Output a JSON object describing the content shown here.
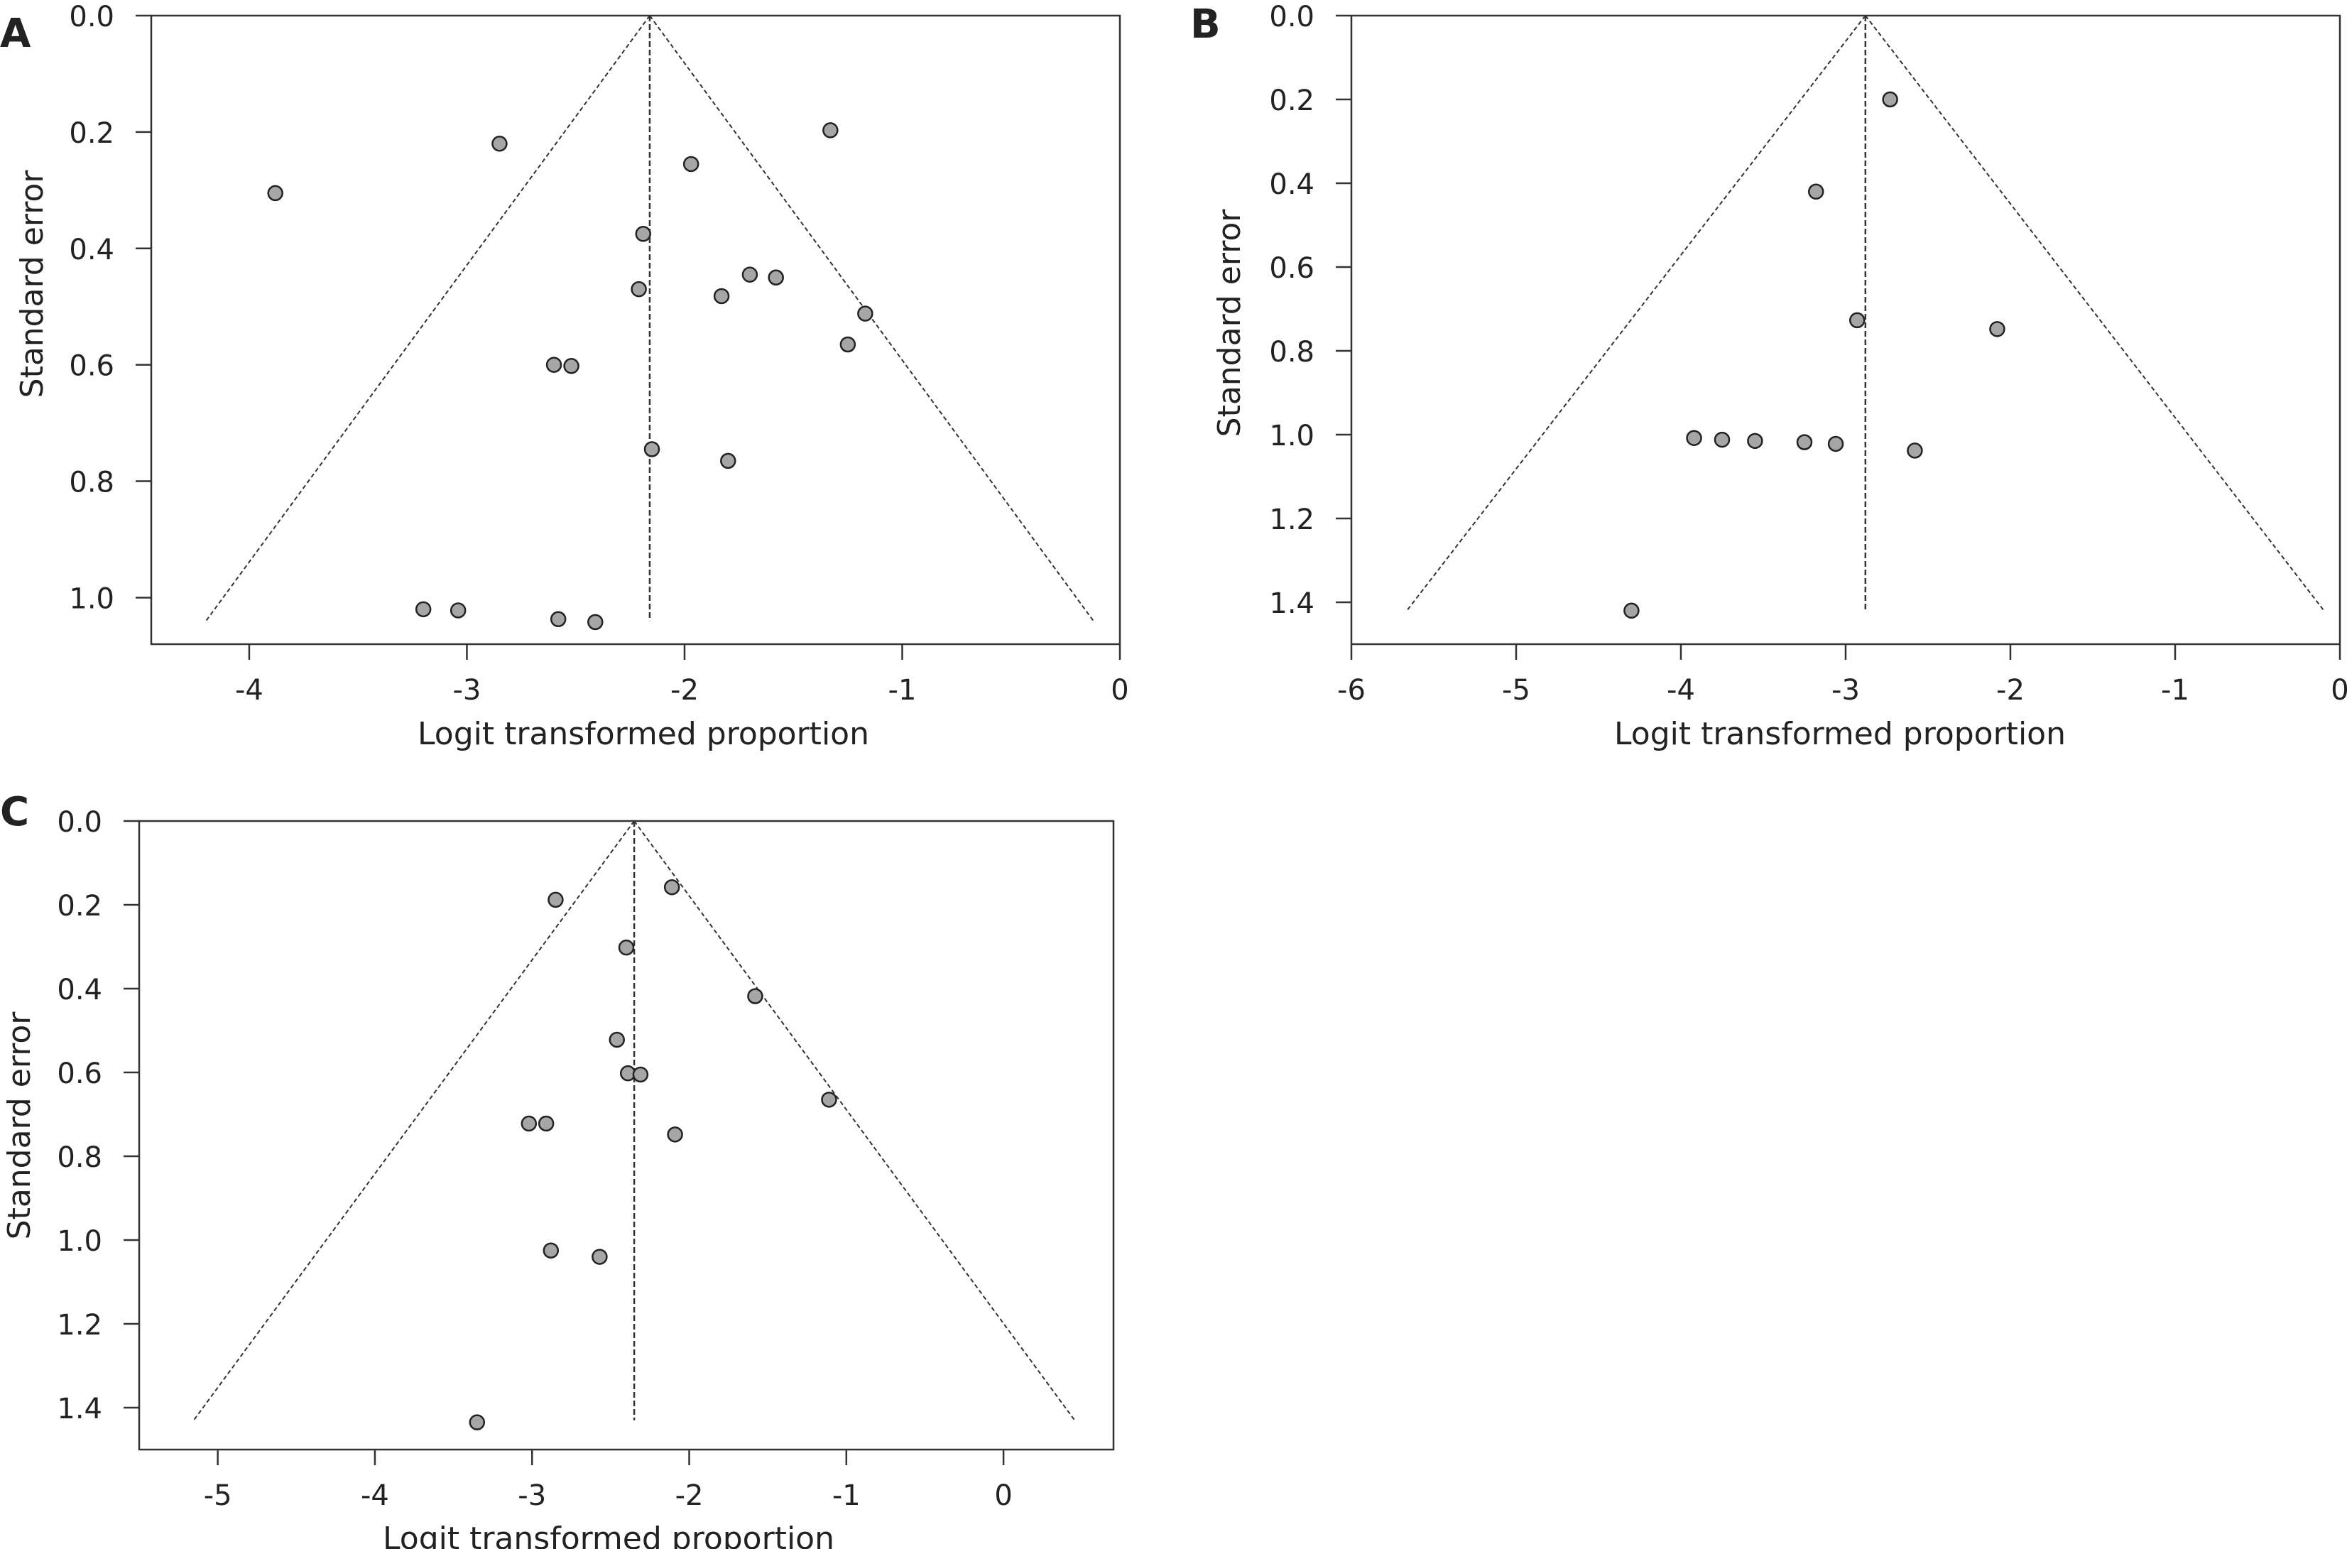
{
  "figure": {
    "background": "#ffffff",
    "point_fill": "#a6a6a6",
    "line_color": "#333333"
  },
  "chart_data": [
    {
      "panel": "A",
      "type": "scatter",
      "xlabel": "Logit transformed proportion",
      "ylabel": "Standard error",
      "xlim": [
        -4.45,
        0
      ],
      "ylim": [
        0,
        1.08
      ],
      "y_reversed": true,
      "xticks": [
        -4,
        -3,
        -2,
        -1,
        0
      ],
      "xtick_labels": [
        "-4",
        "-3",
        "-2",
        "-1",
        "0"
      ],
      "yticks": [
        0,
        0.2,
        0.4,
        0.6,
        0.8,
        1.0
      ],
      "ytick_labels": [
        "0.0",
        "0.2",
        "0.4",
        "0.6",
        "0.8",
        "1.0"
      ],
      "pooled_estimate": -2.16,
      "funnel_max_se": 1.04,
      "points": [
        {
          "x": -3.88,
          "y": 0.305
        },
        {
          "x": -2.85,
          "y": 0.22
        },
        {
          "x": -1.97,
          "y": 0.255
        },
        {
          "x": -1.33,
          "y": 0.197
        },
        {
          "x": -2.19,
          "y": 0.375
        },
        {
          "x": -1.7,
          "y": 0.445
        },
        {
          "x": -1.58,
          "y": 0.45
        },
        {
          "x": -2.21,
          "y": 0.47
        },
        {
          "x": -1.83,
          "y": 0.482
        },
        {
          "x": -1.17,
          "y": 0.512
        },
        {
          "x": -1.25,
          "y": 0.565
        },
        {
          "x": -2.6,
          "y": 0.6
        },
        {
          "x": -2.52,
          "y": 0.602
        },
        {
          "x": -2.15,
          "y": 0.745
        },
        {
          "x": -1.8,
          "y": 0.765
        },
        {
          "x": -3.2,
          "y": 1.02
        },
        {
          "x": -3.04,
          "y": 1.022
        },
        {
          "x": -2.58,
          "y": 1.037
        },
        {
          "x": -2.41,
          "y": 1.042
        }
      ]
    },
    {
      "panel": "B",
      "type": "scatter",
      "xlabel": "Logit transformed proportion",
      "ylabel": "Standard error",
      "xlim": [
        -6.0,
        0
      ],
      "ylim": [
        0,
        1.5
      ],
      "y_reversed": true,
      "xticks": [
        -6,
        -5,
        -4,
        -3,
        -2,
        -1,
        0
      ],
      "xtick_labels": [
        "-6",
        "-5",
        "-4",
        "-3",
        "-2",
        "-1",
        "0"
      ],
      "yticks": [
        0,
        0.2,
        0.4,
        0.6,
        0.8,
        1.0,
        1.2,
        1.4
      ],
      "ytick_labels": [
        "0.0",
        "0.2",
        "0.4",
        "0.6",
        "0.8",
        "1.0",
        "1.2",
        "1.4"
      ],
      "pooled_estimate": -2.88,
      "funnel_max_se": 1.42,
      "points": [
        {
          "x": -2.73,
          "y": 0.2
        },
        {
          "x": -3.18,
          "y": 0.42
        },
        {
          "x": -2.93,
          "y": 0.727
        },
        {
          "x": -2.08,
          "y": 0.748
        },
        {
          "x": -3.92,
          "y": 1.008
        },
        {
          "x": -3.75,
          "y": 1.012
        },
        {
          "x": -3.55,
          "y": 1.015
        },
        {
          "x": -3.25,
          "y": 1.018
        },
        {
          "x": -3.06,
          "y": 1.022
        },
        {
          "x": -2.58,
          "y": 1.038
        },
        {
          "x": -4.3,
          "y": 1.42
        }
      ]
    },
    {
      "panel": "C",
      "type": "scatter",
      "xlabel": "Logit transformed proportion",
      "ylabel": "Standard error",
      "xlim": [
        -5.5,
        0.7
      ],
      "ylim": [
        0,
        1.5
      ],
      "y_reversed": true,
      "xticks": [
        -5,
        -4,
        -3,
        -2,
        -1,
        0
      ],
      "xtick_labels": [
        "-5",
        "-4",
        "-3",
        "-2",
        "-1",
        "0"
      ],
      "yticks": [
        0,
        0.2,
        0.4,
        0.6,
        0.8,
        1.0,
        1.2,
        1.4
      ],
      "ytick_labels": [
        "0.0",
        "0.2",
        "0.4",
        "0.6",
        "0.8",
        "1.0",
        "1.2",
        "1.4"
      ],
      "pooled_estimate": -2.35,
      "funnel_max_se": 1.43,
      "points": [
        {
          "x": -2.85,
          "y": 0.188
        },
        {
          "x": -2.11,
          "y": 0.158
        },
        {
          "x": -2.4,
          "y": 0.302
        },
        {
          "x": -1.58,
          "y": 0.418
        },
        {
          "x": -2.46,
          "y": 0.522
        },
        {
          "x": -2.39,
          "y": 0.602
        },
        {
          "x": -2.31,
          "y": 0.605
        },
        {
          "x": -1.11,
          "y": 0.665
        },
        {
          "x": -3.02,
          "y": 0.722
        },
        {
          "x": -2.91,
          "y": 0.722
        },
        {
          "x": -2.09,
          "y": 0.748
        },
        {
          "x": -2.88,
          "y": 1.025
        },
        {
          "x": -2.57,
          "y": 1.04
        },
        {
          "x": -3.35,
          "y": 1.435
        }
      ]
    }
  ]
}
